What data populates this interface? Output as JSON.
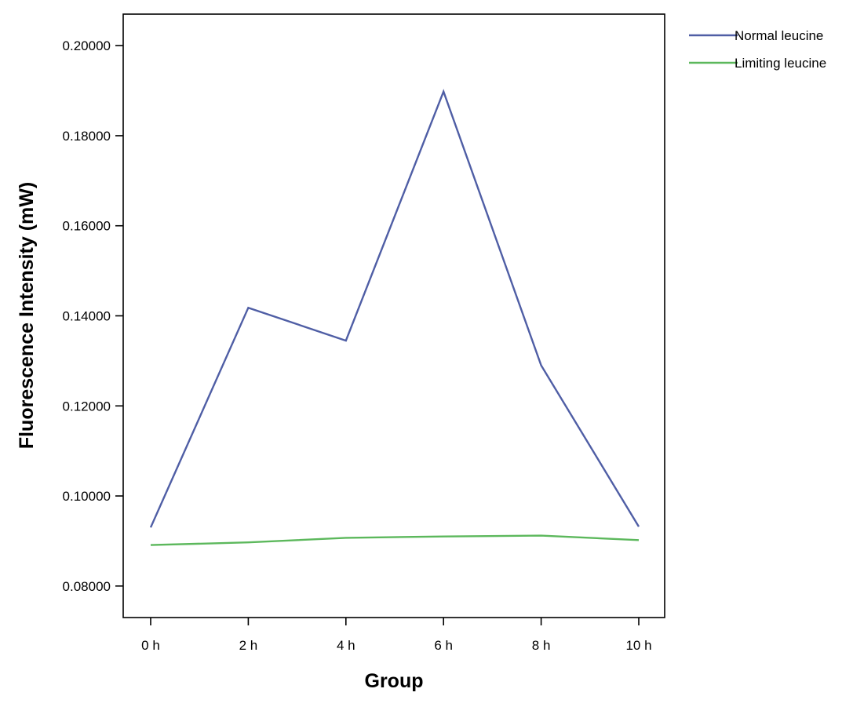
{
  "chart_data": {
    "type": "line",
    "xlabel": "Group",
    "ylabel": "Fluorescence Intensity (mW)",
    "categories": [
      "0 h",
      "2 h",
      "4 h",
      "6 h",
      "8 h",
      "10 h"
    ],
    "ylim": [
      0.073,
      0.207
    ],
    "yticks": [
      0.08,
      0.1,
      0.12,
      0.14,
      0.16,
      0.18,
      0.2
    ],
    "ytick_labels": [
      "0.08000",
      "0.10000",
      "0.12000",
      "0.14000",
      "0.16000",
      "0.18000",
      "0.20000"
    ],
    "grid": false,
    "legend_position": "top-right, outside plot",
    "series": [
      {
        "name": "Normal leucine",
        "color": "#4f5ea5",
        "values": [
          0.093,
          0.1418,
          0.1345,
          0.1898,
          0.129,
          0.0932
        ]
      },
      {
        "name": "Limiting leucine",
        "color": "#5cb85c",
        "values": [
          0.0891,
          0.0897,
          0.0907,
          0.091,
          0.0912,
          0.0902
        ]
      }
    ]
  }
}
